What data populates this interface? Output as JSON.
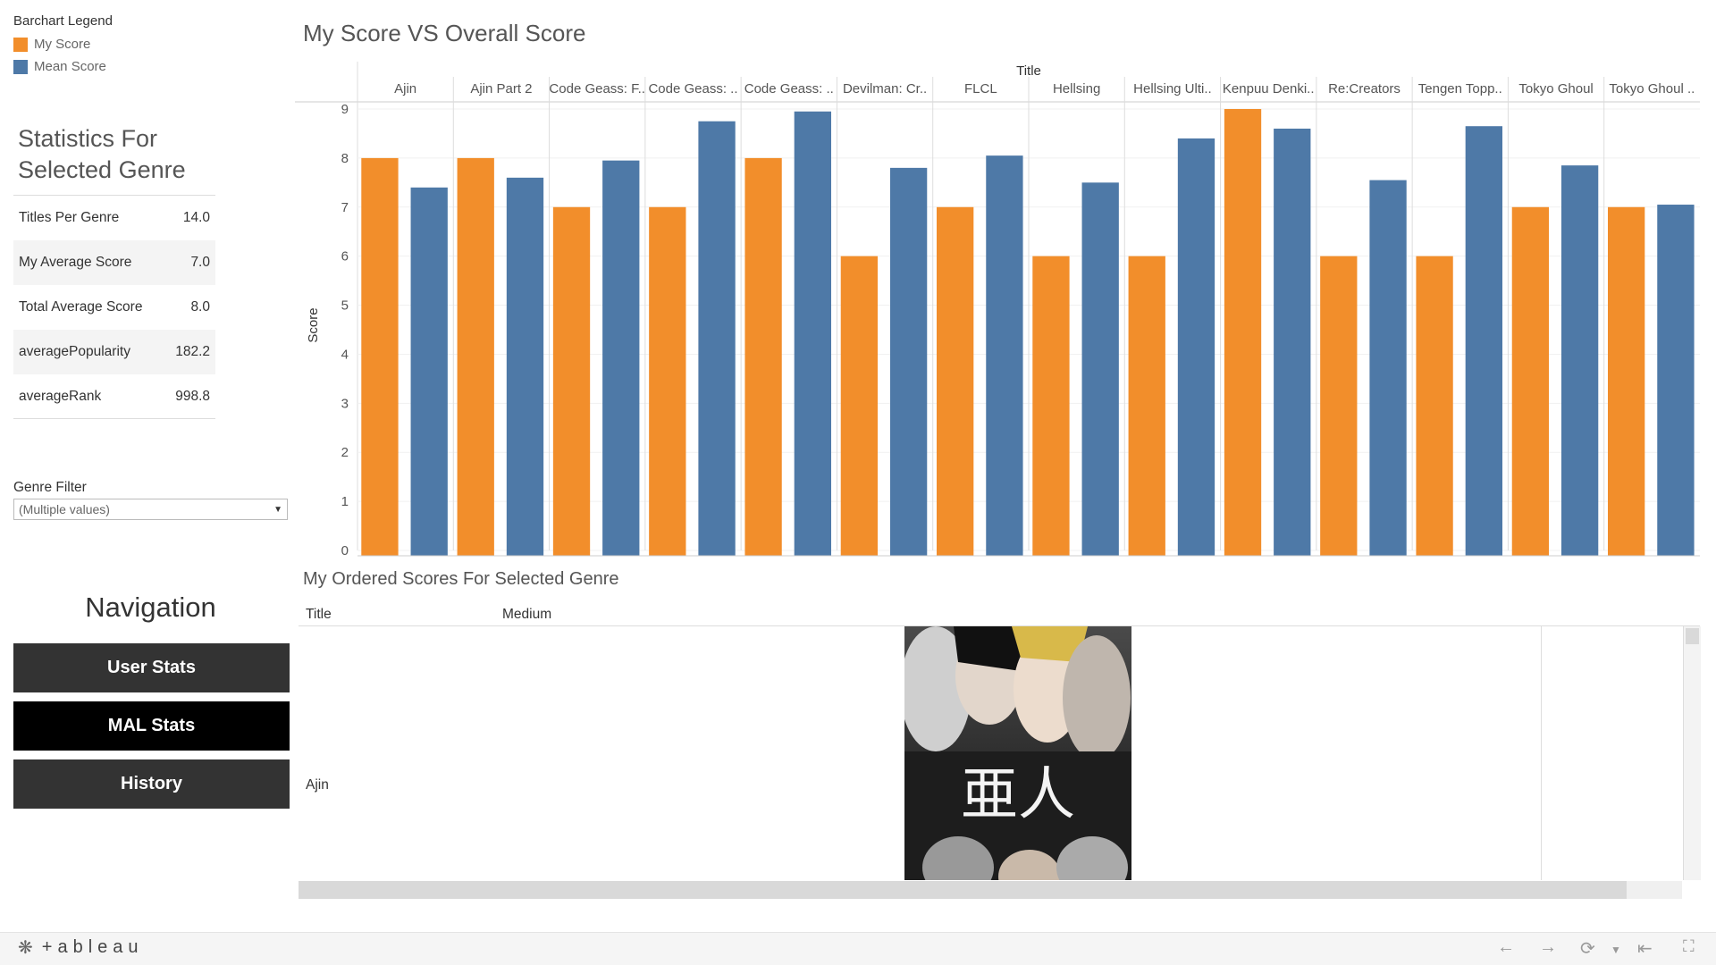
{
  "legend": {
    "title": "Barchart Legend",
    "items": [
      {
        "label": "My Score",
        "color": "#f28e2b"
      },
      {
        "label": "Mean Score",
        "color": "#4e79a7"
      }
    ]
  },
  "stats": {
    "title_line1": "Statistics For",
    "title_line2": "Selected Genre",
    "rows": [
      {
        "label": "Titles Per Genre",
        "value": "14.0"
      },
      {
        "label": "My Average Score",
        "value": "7.0"
      },
      {
        "label": "Total Average Score",
        "value": "8.0"
      },
      {
        "label": "averagePopularity",
        "value": "182.2"
      },
      {
        "label": "averageRank",
        "value": "998.8"
      }
    ]
  },
  "filter": {
    "label": "Genre Filter",
    "value": "(Multiple values)"
  },
  "navigation": {
    "title": "Navigation",
    "buttons": [
      {
        "label": "User Stats",
        "color": "#333333"
      },
      {
        "label": "MAL Stats",
        "color": "#000000"
      },
      {
        "label": "History",
        "color": "#333333"
      }
    ]
  },
  "chart_title": "My Score VS Overall Score",
  "chart_data": {
    "type": "bar",
    "column_header": "Title",
    "ylabel": "Score",
    "ylim": [
      0,
      9
    ],
    "yticks": [
      0,
      1,
      2,
      3,
      4,
      5,
      6,
      7,
      8,
      9
    ],
    "categories": [
      "Ajin",
      "Ajin Part 2",
      "Code Geass: F..",
      "Code Geass: ..",
      "Code Geass: ..",
      "Devilman: Cr..",
      "FLCL",
      "Hellsing",
      "Hellsing Ulti..",
      "Kenpuu Denki..",
      "Re:Creators",
      "Tengen Topp..",
      "Tokyo Ghoul",
      "Tokyo Ghoul .."
    ],
    "series": [
      {
        "name": "My Score",
        "color": "#f28e2b",
        "values": [
          8,
          8,
          7,
          7,
          8,
          6,
          7,
          6,
          6,
          9,
          6,
          6,
          7,
          7
        ]
      },
      {
        "name": "Mean Score",
        "color": "#4e79a7",
        "values": [
          7.4,
          7.6,
          7.95,
          8.75,
          8.95,
          7.8,
          8.05,
          7.5,
          8.4,
          8.6,
          7.55,
          8.65,
          7.85,
          7.05
        ]
      }
    ]
  },
  "scores_table": {
    "title": "My Ordered Scores For Selected Genre",
    "col_title": "Title",
    "col_medium": "Medium",
    "rows": [
      {
        "title": "Ajin"
      }
    ]
  },
  "footer": {
    "logo": "+ableau"
  }
}
